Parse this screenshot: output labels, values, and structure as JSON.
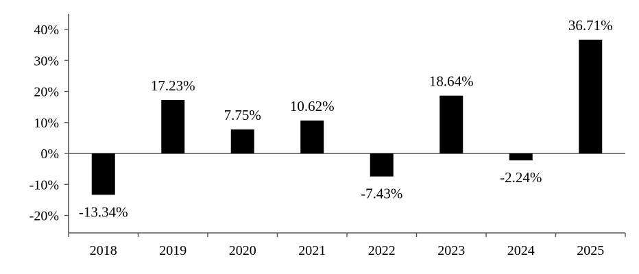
{
  "chart_data": {
    "type": "bar",
    "title": "",
    "xlabel": "",
    "ylabel": "",
    "categories": [
      "2018",
      "2019",
      "2020",
      "2021",
      "2022",
      "2023",
      "2024",
      "2025"
    ],
    "values": [
      -13.34,
      17.23,
      7.75,
      10.62,
      -7.43,
      18.64,
      -2.24,
      36.71
    ],
    "data_labels": [
      "-13.34%",
      "17.23%",
      "7.75%",
      "10.62%",
      "-7.43%",
      "18.64%",
      "-2.24%",
      "36.71%"
    ],
    "y_ticks": [
      40,
      30,
      20,
      10,
      0,
      -10,
      -20
    ],
    "y_tick_labels": [
      "40%",
      "30%",
      "20%",
      "10%",
      "0%",
      "-10%",
      "-20%"
    ],
    "ylim": [
      -25,
      45
    ],
    "bar_color": "#000000",
    "axis_color": "#555555",
    "grid": false,
    "legend": "none"
  }
}
